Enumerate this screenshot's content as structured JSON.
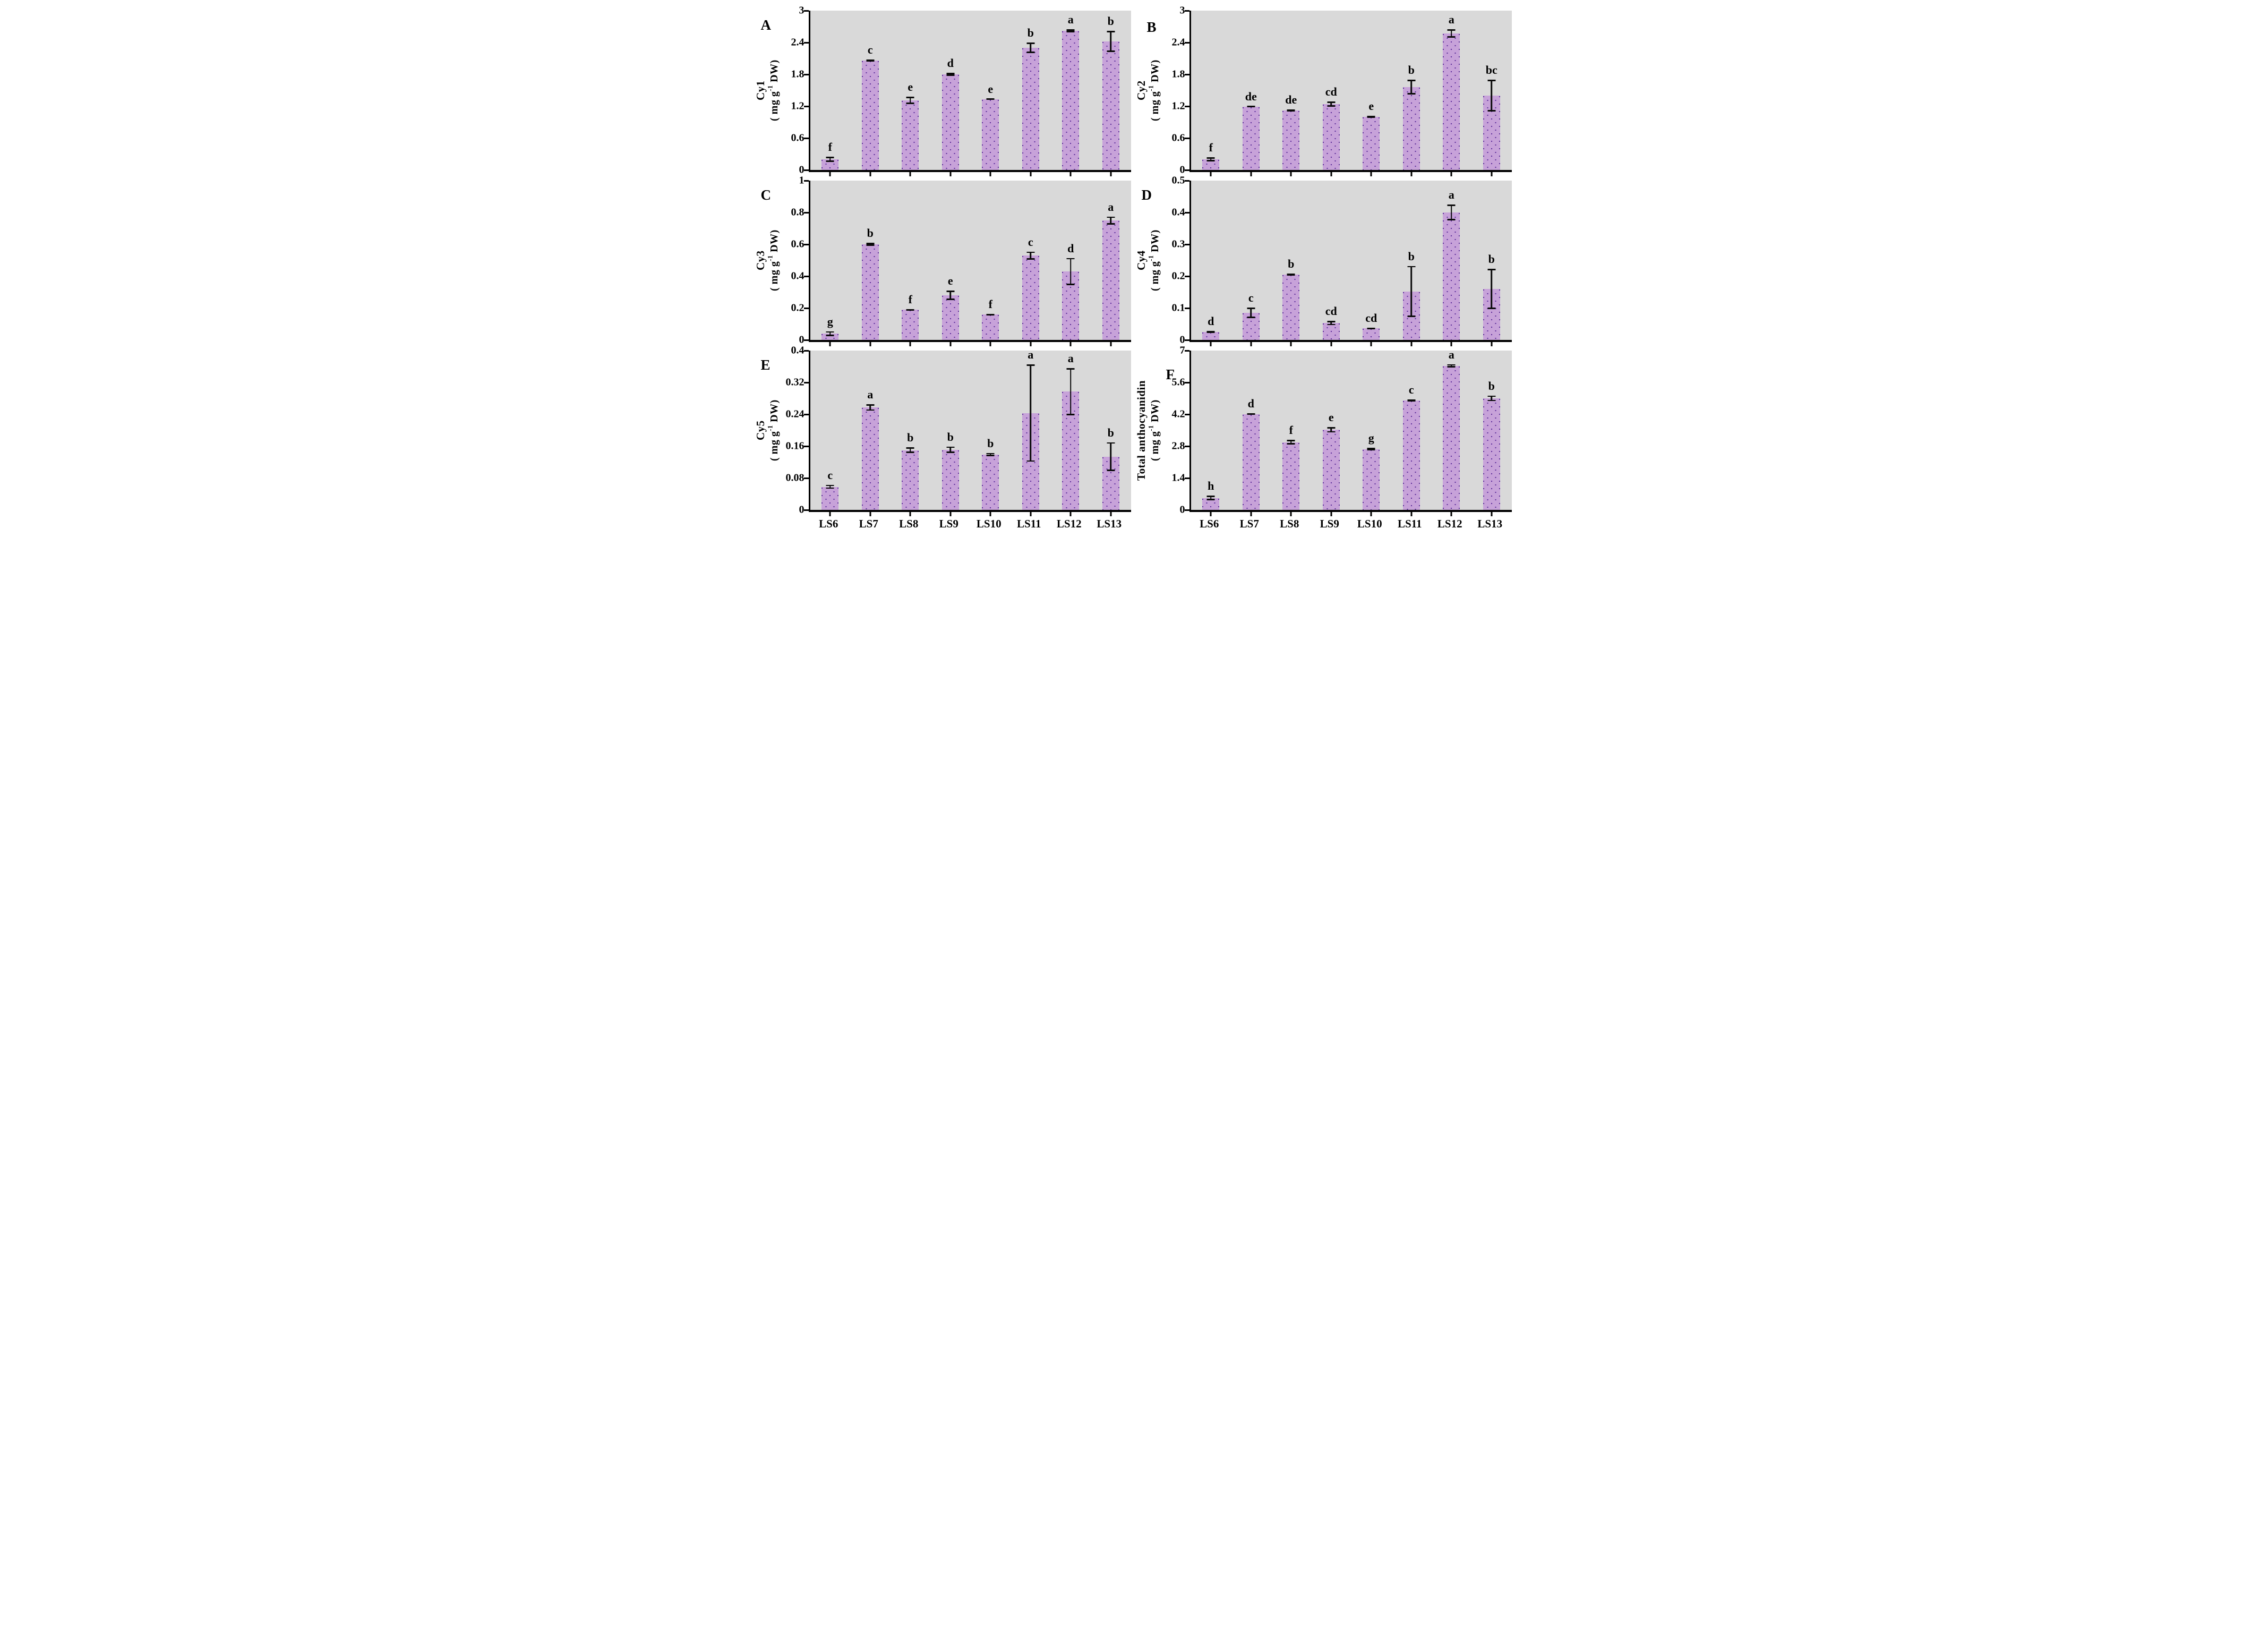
{
  "figure": {
    "unit_parts": {
      "prefix": "( mg g",
      "sup": "-1",
      "suffix": " DW)"
    },
    "colors": {
      "bar_fill": "#c7a2d9",
      "bar_dot": "#5e2f9a",
      "plot_bg": "#d9d9d9",
      "axis": "#000000"
    },
    "categories": [
      "LS6",
      "LS7",
      "LS8",
      "LS9",
      "LS10",
      "LS11",
      "LS12",
      "LS13"
    ]
  },
  "chart_data": [
    {
      "type": "bar",
      "panel_label": "A",
      "ylabel": "Cy1",
      "unit": "( mg g⁻¹ DW)",
      "ylim": [
        0,
        3
      ],
      "yticks": [
        "0",
        "0.6",
        "1.2",
        "1.8",
        "2.4",
        "3"
      ],
      "grid": false,
      "categories": [
        "LS6",
        "LS7",
        "LS8",
        "LS9",
        "LS10",
        "LS11",
        "LS12",
        "LS13"
      ],
      "values": [
        0.2,
        2.06,
        1.31,
        1.8,
        1.33,
        2.3,
        2.62,
        2.42
      ],
      "errors": [
        0.05,
        0.02,
        0.07,
        0.03,
        0.01,
        0.1,
        0.03,
        0.2
      ],
      "sig_letters": [
        "f",
        "c",
        "e",
        "d",
        "e",
        "b",
        "a",
        "b"
      ],
      "show_xlabels": false
    },
    {
      "type": "bar",
      "panel_label": "B",
      "ylabel": "Cy2",
      "unit": "( mg g⁻¹ DW)",
      "ylim": [
        0,
        3
      ],
      "yticks": [
        "0",
        "0.6",
        "1.2",
        "1.8",
        "2.4",
        "3"
      ],
      "grid": false,
      "categories": [
        "LS6",
        "LS7",
        "LS8",
        "LS9",
        "LS10",
        "LS11",
        "LS12",
        "LS13"
      ],
      "values": [
        0.2,
        1.19,
        1.12,
        1.24,
        1.0,
        1.56,
        2.57,
        1.4
      ],
      "errors": [
        0.04,
        0.01,
        0.02,
        0.05,
        0.02,
        0.14,
        0.08,
        0.3
      ],
      "sig_letters": [
        "f",
        "de",
        "de",
        "cd",
        "e",
        "b",
        "a",
        "bc"
      ],
      "show_xlabels": false
    },
    {
      "type": "bar",
      "panel_label": "C",
      "ylabel": "Cy3",
      "unit": "( mg g⁻¹ DW)",
      "ylim": [
        0,
        1
      ],
      "yticks": [
        "0",
        "0.2",
        "0.4",
        "0.6",
        "0.8",
        "1"
      ],
      "grid": false,
      "categories": [
        "LS6",
        "LS7",
        "LS8",
        "LS9",
        "LS10",
        "LS11",
        "LS12",
        "LS13"
      ],
      "values": [
        0.04,
        0.6,
        0.19,
        0.28,
        0.16,
        0.53,
        0.43,
        0.75
      ],
      "errors": [
        0.015,
        0.01,
        0.005,
        0.03,
        0.005,
        0.025,
        0.085,
        0.025
      ],
      "sig_letters": [
        "g",
        "b",
        "f",
        "e",
        "f",
        "c",
        "d",
        "a"
      ],
      "show_xlabels": false
    },
    {
      "type": "bar",
      "panel_label": "D",
      "ylabel": "Cy4",
      "unit": "( mg g⁻¹ DW)",
      "ylim": [
        0,
        0.5
      ],
      "yticks": [
        "0",
        "0.1",
        "0.2",
        "0.3",
        "0.4",
        "0.5"
      ],
      "grid": false,
      "categories": [
        "LS6",
        "LS7",
        "LS8",
        "LS9",
        "LS10",
        "LS11",
        "LS12",
        "LS13"
      ],
      "values": [
        0.025,
        0.085,
        0.205,
        0.053,
        0.036,
        0.152,
        0.4,
        0.16
      ],
      "errors": [
        0.003,
        0.016,
        0.004,
        0.007,
        0.002,
        0.08,
        0.025,
        0.063
      ],
      "sig_letters": [
        "d",
        "c",
        "b",
        "cd",
        "cd",
        "b",
        "a",
        "b"
      ],
      "show_xlabels": false
    },
    {
      "type": "bar",
      "panel_label": "E",
      "ylabel": "Cy5",
      "unit": "( mg g⁻¹ DW)",
      "ylim": [
        0,
        0.4
      ],
      "yticks": [
        "0",
        "0.08",
        "0.16",
        "0.24",
        "0.32",
        "0.4"
      ],
      "grid": false,
      "categories": [
        "LS6",
        "LS7",
        "LS8",
        "LS9",
        "LS10",
        "LS11",
        "LS12",
        "LS13"
      ],
      "values": [
        0.058,
        0.257,
        0.15,
        0.151,
        0.139,
        0.243,
        0.297,
        0.134
      ],
      "errors": [
        0.005,
        0.008,
        0.007,
        0.008,
        0.004,
        0.122,
        0.059,
        0.036
      ],
      "sig_letters": [
        "c",
        "a",
        "b",
        "b",
        "b",
        "a",
        "a",
        "b"
      ],
      "show_xlabels": true
    },
    {
      "type": "bar",
      "panel_label": "F",
      "ylabel": "Total anthocyanidin",
      "unit": "( mg g⁻¹ DW)",
      "ylim": [
        0,
        7
      ],
      "yticks": [
        "0",
        "1.4",
        "2.8",
        "4.2",
        "5.6",
        "7"
      ],
      "grid": false,
      "categories": [
        "LS6",
        "LS7",
        "LS8",
        "LS9",
        "LS10",
        "LS11",
        "LS12",
        "LS13"
      ],
      "values": [
        0.52,
        4.21,
        2.97,
        3.52,
        2.67,
        4.81,
        6.33,
        4.9
      ],
      "errors": [
        0.1,
        0.04,
        0.1,
        0.12,
        0.05,
        0.04,
        0.07,
        0.12
      ],
      "sig_letters": [
        "h",
        "d",
        "f",
        "e",
        "g",
        "c",
        "a",
        "b"
      ],
      "show_xlabels": true
    }
  ]
}
